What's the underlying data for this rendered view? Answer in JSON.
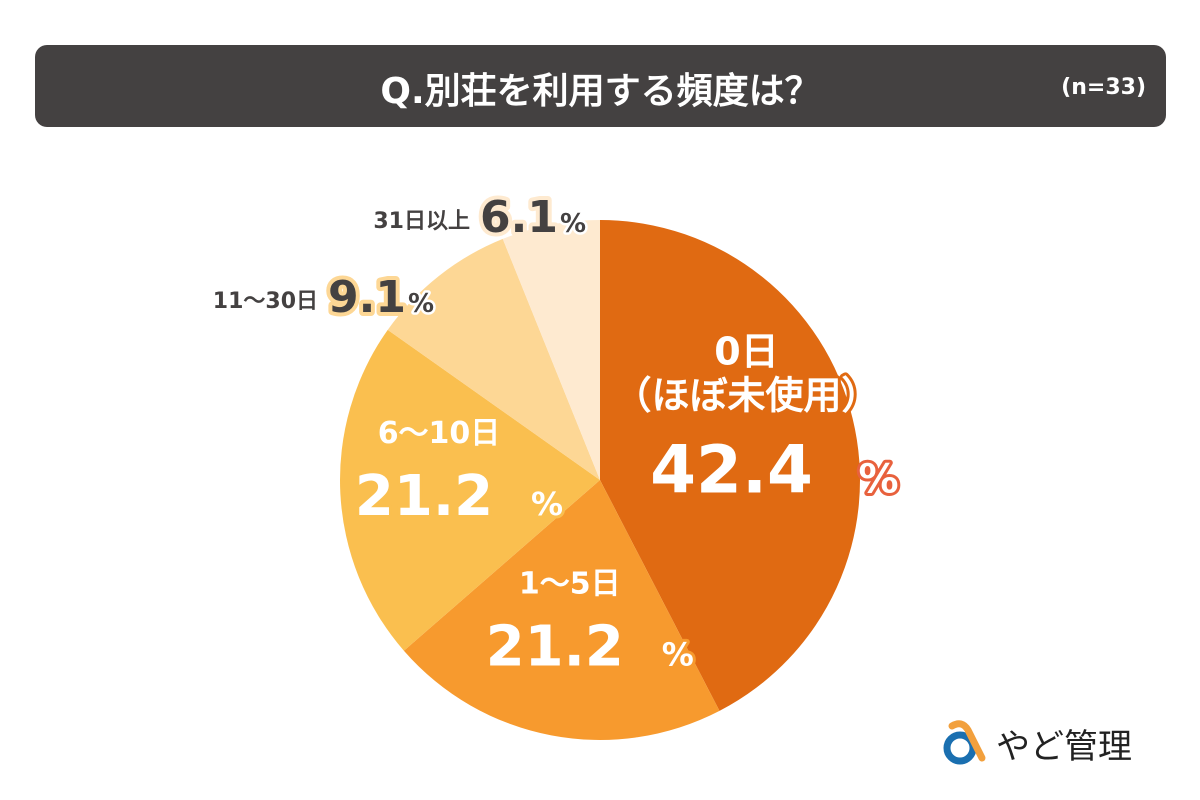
{
  "title": {
    "question": "Q.別荘を利用する頻度は？",
    "n": "(n=33)"
  },
  "chart_data": {
    "type": "pie",
    "categories": [
      "0日（ほぼ未使用）",
      "1〜5日",
      "6〜10日",
      "11〜30日",
      "31日以上"
    ],
    "values": [
      42.4,
      21.2,
      21.2,
      9.1,
      6.1
    ],
    "value_labels": [
      "42.4",
      "21.2",
      "21.2",
      "9.1",
      "6.1"
    ],
    "unit": "%",
    "colors": [
      "#E06A12",
      "#F79A2E",
      "#FABF4F",
      "#FDD795",
      "#FEEAD0"
    ],
    "label_lines": [
      [
        "0日",
        "（ほぼ未使用）"
      ],
      [
        "1〜5日"
      ],
      [
        "6〜10日"
      ],
      [
        "11〜30日"
      ],
      [
        "31日以上"
      ]
    ],
    "start_angle": "12 o'clock",
    "direction": "clockwise"
  },
  "logo": {
    "text": "やど管理",
    "icon": "ampersand-logo-icon",
    "colors": [
      "#F2A03D",
      "#1A6FB0"
    ]
  }
}
